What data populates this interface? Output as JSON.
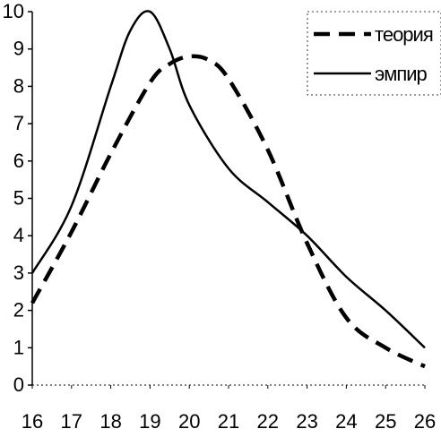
{
  "chart_data": {
    "type": "line",
    "title": "",
    "xlabel": "",
    "ylabel": "",
    "x": [
      16,
      17,
      18,
      19,
      20,
      21,
      22,
      23,
      24,
      25,
      26
    ],
    "xlim": [
      16,
      26
    ],
    "ylim": [
      0,
      10
    ],
    "x_ticks": [
      "16",
      "17",
      "18",
      "19",
      "20",
      "21",
      "22",
      "23",
      "24",
      "25",
      "26"
    ],
    "y_ticks": [
      "0",
      "1",
      "2",
      "3",
      "4",
      "5",
      "6",
      "7",
      "8",
      "9",
      "10"
    ],
    "grid": false,
    "legend_position": "top-right",
    "series": [
      {
        "name": "теория",
        "style": "dashed",
        "color": "#000000",
        "points": [
          [
            16,
            2.2
          ],
          [
            17,
            4.1
          ],
          [
            18,
            6.2
          ],
          [
            19,
            8.1
          ],
          [
            19.5,
            8.6
          ],
          [
            20,
            8.8
          ],
          [
            20.5,
            8.7
          ],
          [
            21,
            8.2
          ],
          [
            22,
            6.3
          ],
          [
            23,
            3.8
          ],
          [
            24,
            1.8
          ],
          [
            25,
            1.0
          ],
          [
            26,
            0.5
          ]
        ]
      },
      {
        "name": "эмпир",
        "style": "solid",
        "color": "#000000",
        "points": [
          [
            16,
            3.0
          ],
          [
            17,
            4.8
          ],
          [
            18,
            8.0
          ],
          [
            18.5,
            9.5
          ],
          [
            19,
            10.0
          ],
          [
            19.5,
            9.0
          ],
          [
            20,
            7.5
          ],
          [
            21,
            5.8
          ],
          [
            22,
            4.9
          ],
          [
            23,
            4.0
          ],
          [
            24,
            2.9
          ],
          [
            25,
            2.0
          ],
          [
            26,
            1.0
          ]
        ]
      }
    ]
  }
}
